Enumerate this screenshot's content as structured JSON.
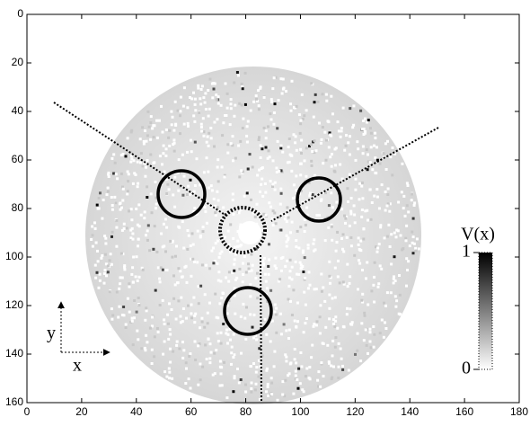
{
  "chart_data": {
    "type": "image",
    "xlim": [
      0,
      180
    ],
    "ylim": [
      0,
      160
    ],
    "y_inverted": true,
    "xticks": [
      0,
      20,
      40,
      60,
      80,
      100,
      120,
      140,
      160,
      180
    ],
    "yticks": [
      0,
      20,
      40,
      60,
      80,
      100,
      120,
      140,
      160
    ],
    "colorbar": {
      "label": "V(x)",
      "lim": [
        0,
        1
      ],
      "ticks": [
        0,
        1
      ],
      "colormap": [
        "#ffffff",
        "#000000"
      ]
    },
    "axis_arrows": {
      "x": "x",
      "y": "y"
    }
  }
}
